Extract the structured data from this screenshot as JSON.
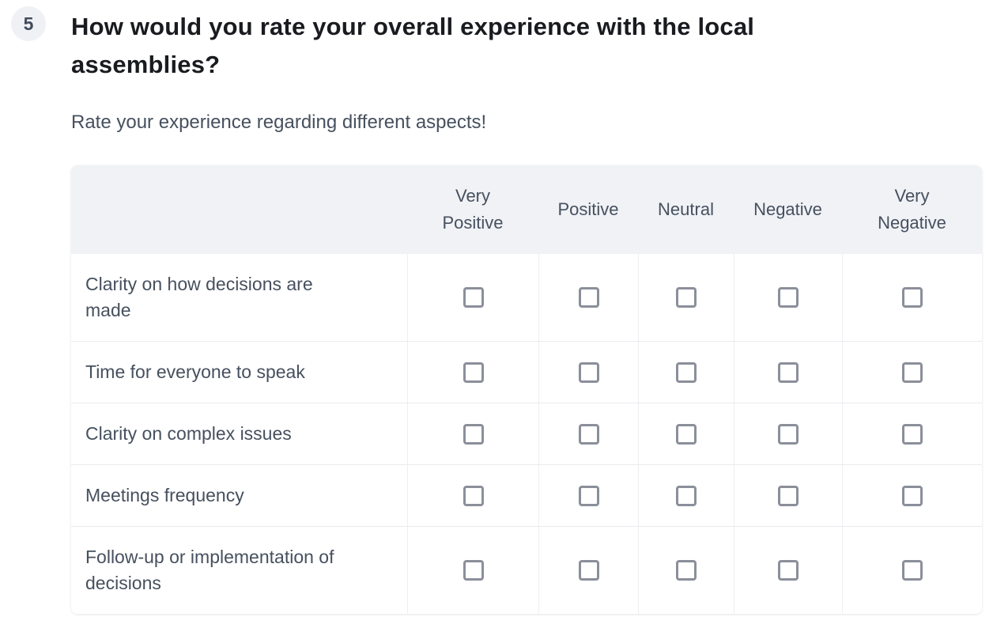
{
  "question": {
    "number": "5",
    "title": "How would you rate your overall experience with the local assemblies?",
    "subtitle": "Rate your experience regarding different aspects!"
  },
  "matrix": {
    "columns": [
      "Very Positive",
      "Positive",
      "Neutral",
      "Negative",
      "Very Negative"
    ],
    "rows": [
      {
        "label": "Clarity on how decisions are made",
        "checked": [
          false,
          false,
          false,
          false,
          false
        ]
      },
      {
        "label": "Time for everyone to speak",
        "checked": [
          false,
          false,
          false,
          false,
          false
        ]
      },
      {
        "label": "Clarity on complex issues",
        "checked": [
          false,
          false,
          false,
          false,
          false
        ]
      },
      {
        "label": "Meetings frequency",
        "checked": [
          false,
          false,
          false,
          false,
          false
        ]
      },
      {
        "label": "Follow-up or implementation of decisions",
        "checked": [
          false,
          false,
          false,
          false,
          false
        ]
      }
    ]
  },
  "colors": {
    "title_text": "#191b1f",
    "slate_text": "#46505e",
    "header_background": "#f0f2f6",
    "badge_background": "#eff1f5",
    "checkbox_border": "#8b8f9a",
    "grid_line": "#e9ebee"
  }
}
